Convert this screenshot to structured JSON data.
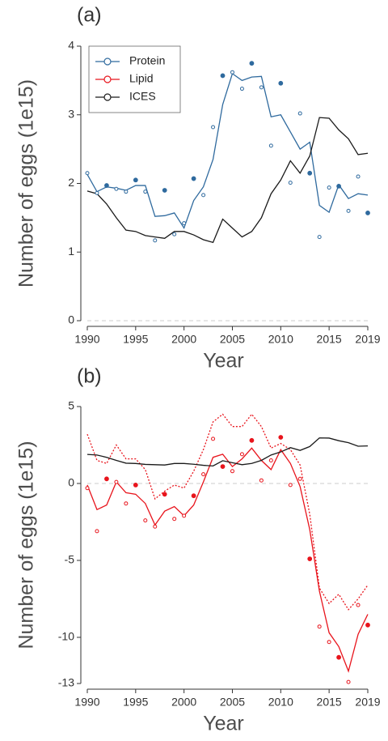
{
  "chart_data": [
    {
      "type": "line",
      "panel_label": "(a)",
      "xlabel": "Year",
      "ylabel": "Number of eggs (1e15)",
      "x": [
        1990,
        1991,
        1992,
        1993,
        1994,
        1995,
        1996,
        1997,
        1998,
        1999,
        2000,
        2001,
        2002,
        2003,
        2004,
        2005,
        2006,
        2007,
        2008,
        2009,
        2010,
        2011,
        2012,
        2013,
        2014,
        2015,
        2016,
        2017,
        2018,
        2019
      ],
      "xlim": [
        1990,
        2019
      ],
      "xticks": [
        1990,
        1995,
        2000,
        2005,
        2010,
        2015,
        2019
      ],
      "ylim": [
        0,
        4
      ],
      "yticks": [
        0,
        1,
        2,
        3,
        4
      ],
      "zero_line": true,
      "series": [
        {
          "name": "Protein",
          "color": "#2f6a9e",
          "values": [
            2.13,
            1.88,
            1.95,
            1.93,
            1.9,
            1.97,
            1.97,
            1.52,
            1.53,
            1.57,
            1.35,
            1.75,
            1.95,
            2.35,
            3.15,
            3.6,
            3.5,
            3.55,
            3.56,
            2.97,
            3.0,
            2.75,
            2.5,
            2.6,
            1.68,
            1.58,
            1.98,
            1.78,
            1.85,
            1.83
          ],
          "points": [
            2.15,
            1.86,
            1.97,
            1.92,
            1.88,
            2.05,
            1.88,
            1.17,
            1.9,
            1.26,
            1.42,
            2.07,
            1.83,
            2.82,
            3.57,
            3.62,
            3.38,
            3.75,
            3.4,
            2.55,
            3.46,
            2.01,
            3.02,
            2.15,
            1.22,
            1.94,
            1.96,
            1.6,
            2.1,
            1.57
          ],
          "point_filled": [
            false,
            false,
            true,
            false,
            false,
            true,
            false,
            false,
            true,
            false,
            false,
            true,
            false,
            false,
            true,
            false,
            false,
            true,
            false,
            false,
            true,
            false,
            false,
            true,
            false,
            false,
            true,
            false,
            false,
            true
          ]
        },
        {
          "name": "ICES",
          "color": "#1a1a1a",
          "values": [
            1.89,
            1.85,
            1.7,
            1.5,
            1.32,
            1.3,
            1.24,
            1.22,
            1.2,
            1.3,
            1.3,
            1.25,
            1.18,
            1.14,
            1.48,
            1.35,
            1.22,
            1.3,
            1.5,
            1.85,
            2.05,
            2.33,
            2.15,
            2.4,
            2.96,
            2.95,
            2.78,
            2.65,
            2.42,
            2.44
          ]
        }
      ],
      "legend": [
        {
          "name": "Protein",
          "color": "#2f6a9e"
        },
        {
          "name": "Lipid",
          "color": "#e8141c"
        },
        {
          "name": "ICES",
          "color": "#1a1a1a"
        }
      ]
    },
    {
      "type": "line",
      "panel_label": "(b)",
      "xlabel": "Year",
      "ylabel": "Number of eggs (1e15)",
      "x": [
        1990,
        1991,
        1992,
        1993,
        1994,
        1995,
        1996,
        1997,
        1998,
        1999,
        2000,
        2001,
        2002,
        2003,
        2004,
        2005,
        2006,
        2007,
        2008,
        2009,
        2010,
        2011,
        2012,
        2013,
        2014,
        2015,
        2016,
        2017,
        2018,
        2019
      ],
      "xlim": [
        1990,
        2019
      ],
      "xticks": [
        1990,
        1995,
        2000,
        2005,
        2010,
        2015,
        2019
      ],
      "ylim": [
        -13,
        5
      ],
      "yticks": [
        -13,
        -10,
        -5,
        0,
        5
      ],
      "zero_line": true,
      "series": [
        {
          "name": "Lipid",
          "color": "#e8141c",
          "values": [
            -0.1,
            -1.7,
            -1.4,
            0.1,
            -0.6,
            -0.7,
            -1.3,
            -2.7,
            -1.8,
            -1.5,
            -2.1,
            -1.4,
            0.1,
            1.7,
            1.9,
            1.1,
            1.6,
            2.3,
            1.5,
            0.9,
            2.2,
            1.3,
            -0.2,
            -3,
            -7,
            -9.7,
            -10.6,
            -12.2,
            -9.8,
            -8.5
          ],
          "upper": [
            3.2,
            1.5,
            1.3,
            2.5,
            1.6,
            1.6,
            0.9,
            -1.0,
            -0.5,
            -0.1,
            -0.3,
            0.8,
            2.2,
            4.0,
            4.5,
            3.7,
            3.7,
            4.5,
            3.7,
            2.3,
            2.6,
            2.2,
            1.2,
            -2.0,
            -6.8,
            -7.8,
            -7.2,
            -8.2,
            -7.5,
            -6.6
          ],
          "points": [
            -0.3,
            -3.1,
            0.3,
            0.1,
            -1.3,
            -0.1,
            -2.4,
            -2.8,
            -0.7,
            -2.3,
            -2.1,
            -0.8,
            0.6,
            2.9,
            1.1,
            0.8,
            1.9,
            2.8,
            0.2,
            1.5,
            3.0,
            -0.1,
            0.3,
            -4.9,
            -9.3,
            -10.3,
            -11.3,
            -12.9,
            -7.9,
            -9.2
          ],
          "point_filled": [
            false,
            false,
            true,
            false,
            false,
            true,
            false,
            false,
            true,
            false,
            false,
            true,
            false,
            false,
            true,
            false,
            false,
            true,
            false,
            false,
            true,
            false,
            false,
            true,
            false,
            false,
            true,
            false,
            false,
            true
          ]
        },
        {
          "name": "ICES",
          "color": "#1a1a1a",
          "values": [
            1.89,
            1.85,
            1.7,
            1.5,
            1.32,
            1.3,
            1.24,
            1.22,
            1.2,
            1.3,
            1.3,
            1.25,
            1.18,
            1.14,
            1.48,
            1.35,
            1.22,
            1.3,
            1.5,
            1.85,
            2.05,
            2.33,
            2.15,
            2.4,
            2.96,
            2.95,
            2.78,
            2.65,
            2.42,
            2.44
          ]
        }
      ]
    }
  ]
}
